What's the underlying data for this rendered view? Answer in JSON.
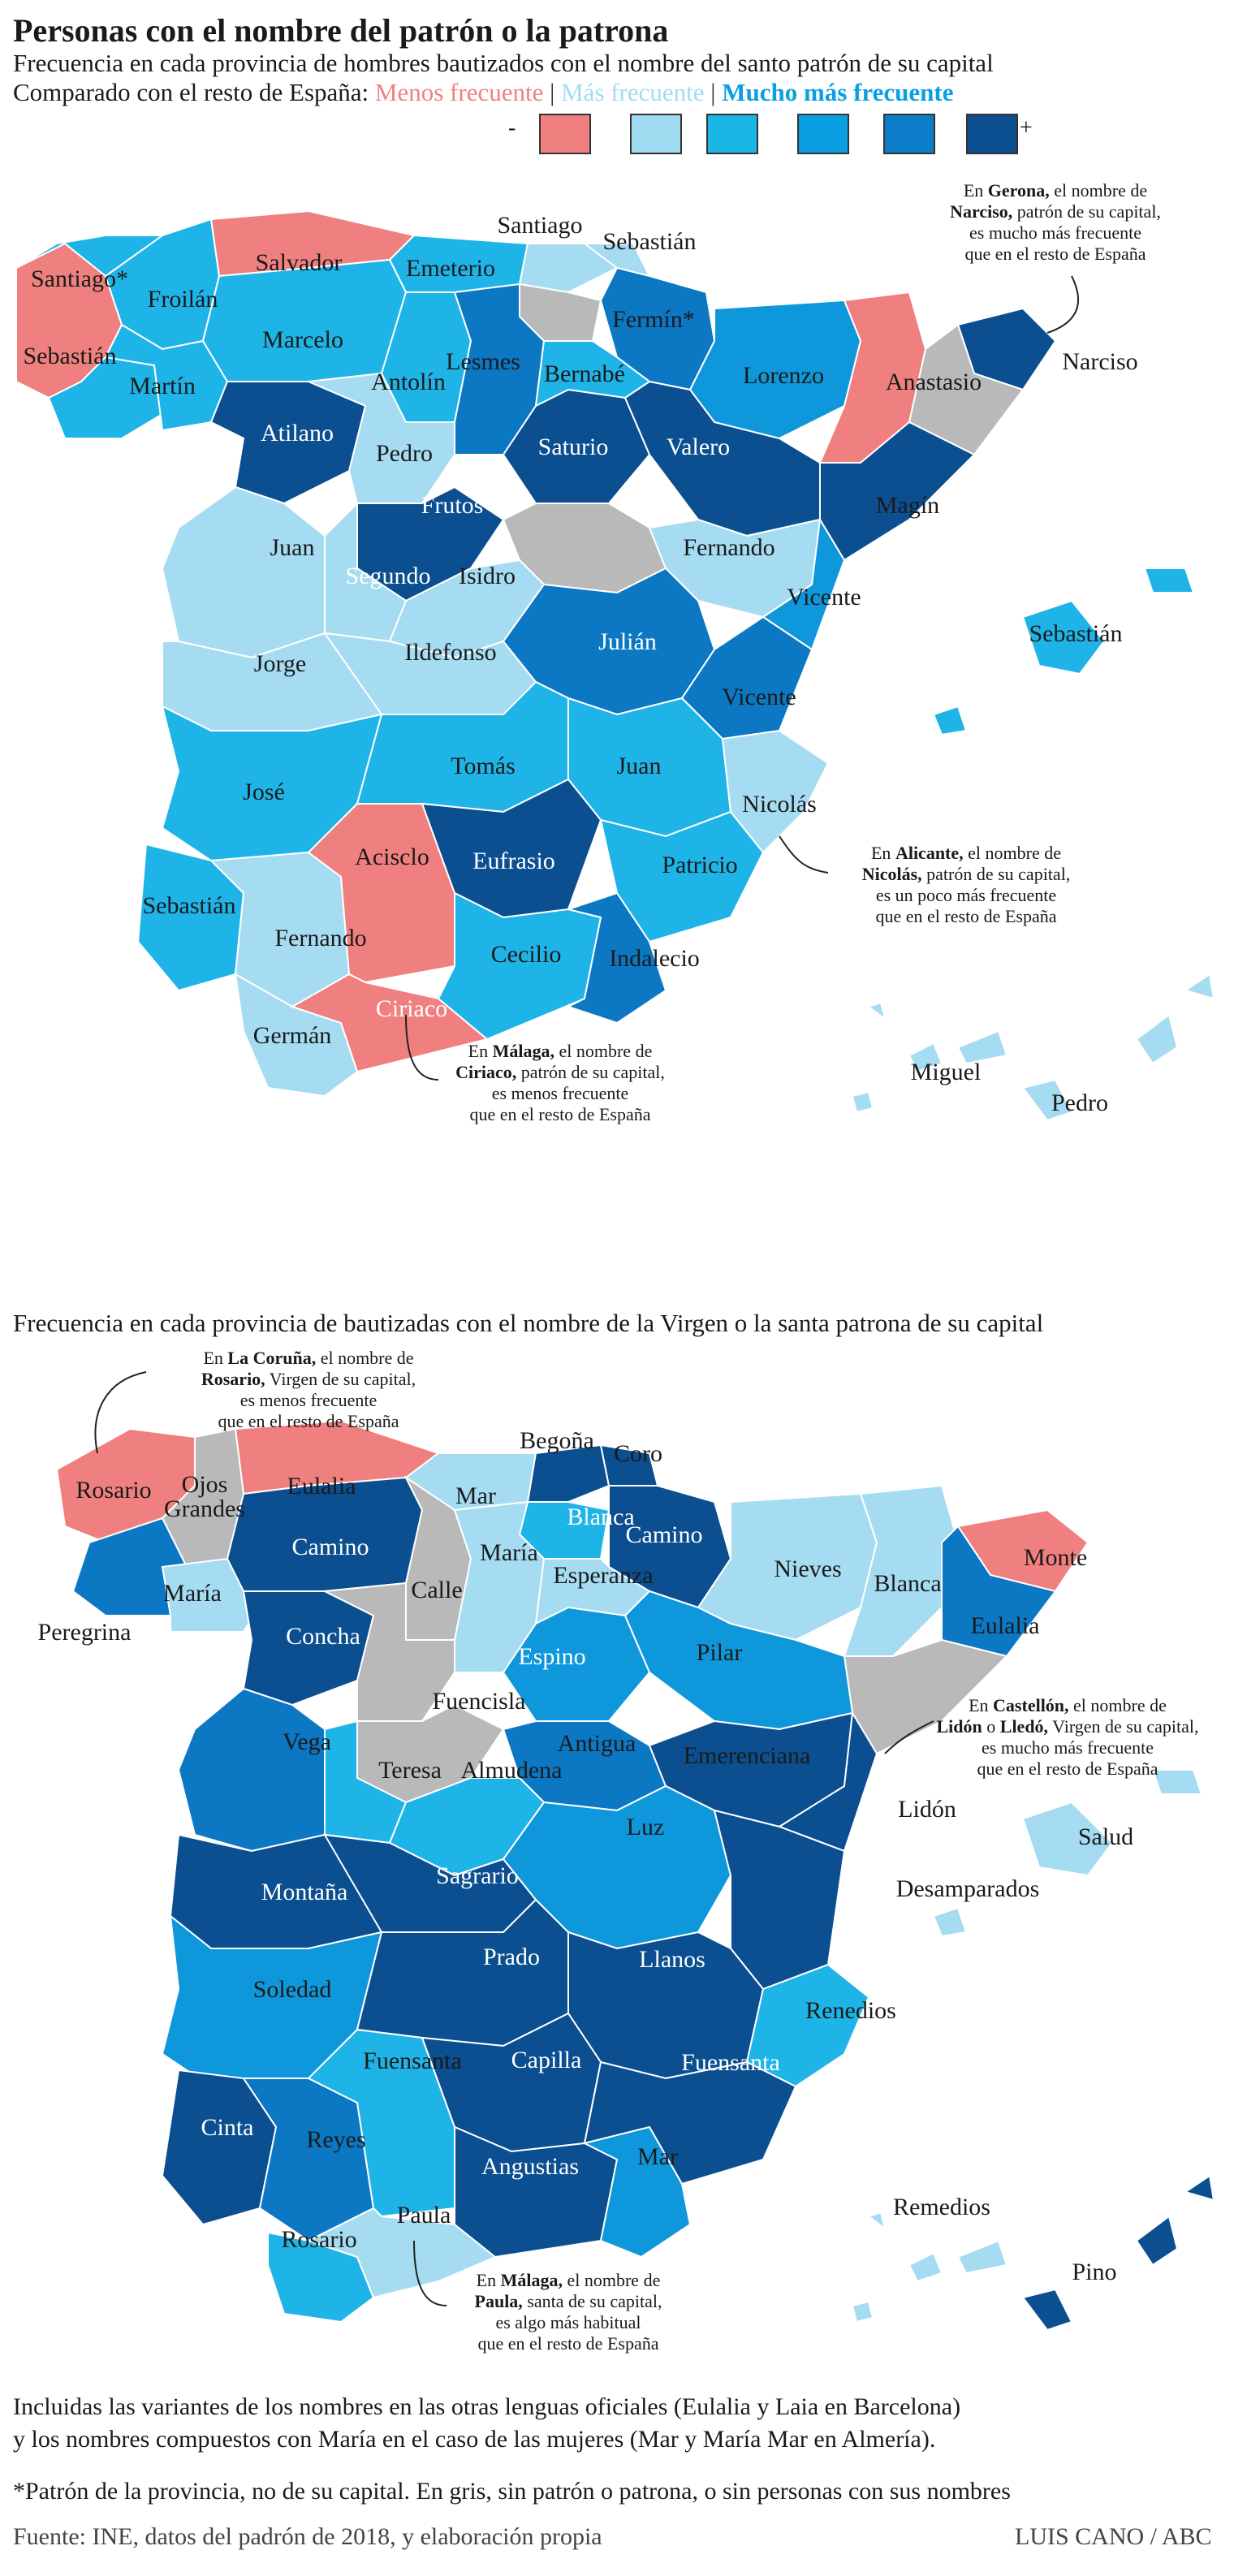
{
  "header": {
    "title": "Personas con el nombre del patrón o la patrona",
    "subtitle1": "Frecuencia en cada provincia de hombres bautizados con el nombre del santo patrón de su capital",
    "subtitle2_prefix": "Comparado con el resto de España:",
    "legend_less": "Menos frecuente",
    "legend_more": "Más frecuente",
    "legend_much_more": "Mucho más frecuente",
    "legend_minus": "-",
    "legend_plus": "+",
    "legend_colors": [
      "#f08080",
      "#9fdcf2",
      "#19b6e6",
      "#0a9fe0",
      "#0a7cc8",
      "#0b4f91"
    ]
  },
  "colors": {
    "less": "#f08080",
    "light": "#a5dcf2",
    "mid": "#1fb4e8",
    "mid2": "#0f97dc",
    "dark": "#0c78c4",
    "darkest": "#0b4f91",
    "gray": "#b9b9b9",
    "border": "#ffffff"
  },
  "map1": {
    "labels": [
      "Santiago",
      "Sebastián",
      "Santiago*",
      "Salvador",
      "Emeterio",
      "Froilán",
      "Sebastián",
      "Marcelo",
      "Fermín*",
      "Martín",
      "Antolín",
      "Lesmes",
      "Bernabé",
      "Lorenzo",
      "Anastasio",
      "Narciso",
      "Atilano",
      "Pedro",
      "Saturio",
      "Valero",
      "Frutos",
      "Magín",
      "Juan",
      "Fernando",
      "Segundo",
      "Isidro",
      "Vicente",
      "Sebastián",
      "Jorge",
      "Ildefonso",
      "Julián",
      "Vicente",
      "Tomás",
      "Juan",
      "José",
      "Nicolás",
      "Acisclo",
      "Eufrasio",
      "Patricio",
      "Sebastián",
      "Fernando",
      "Cecilio",
      "Indalecio",
      "Ciriaco",
      "Germán",
      "Miguel",
      "Pedro"
    ],
    "notes": {
      "gerona": [
        "En ",
        "Gerona,",
        " el nombre de",
        "Narciso,",
        " patrón de su capital,",
        "es mucho más frecuente",
        "que en el resto de España"
      ],
      "alicante": [
        "En ",
        "Alicante,",
        " el nombre de",
        "Nicolás,",
        " patrón de su capital,",
        "es un poco más frecuente",
        "que en el resto de España"
      ],
      "malaga": [
        "En ",
        "Málaga,",
        " el nombre de",
        "Ciriaco,",
        " patrón de su capital,",
        "es menos frecuente",
        "que en el resto de España"
      ]
    }
  },
  "map2": {
    "heading": "Frecuencia en cada provincia de bautizadas con el nombre de la Virgen o la santa patrona de su capital",
    "labels": [
      "Begoña",
      "Coro",
      "Rosario",
      "Ojos",
      "Grandes",
      "Eulalia",
      "Mar",
      "Blanca",
      "Camino",
      "Camino",
      "María",
      "Esperanza",
      "Nieves",
      "Blanca",
      "Monte",
      "María",
      "Calle",
      "Peregrina",
      "Concha",
      "Espino",
      "Pilar",
      "Eulalia",
      "Fuencisla",
      "Vega",
      "Antigua",
      "Emerenciana",
      "Teresa",
      "Almudena",
      "Lidón",
      "Luz",
      "Salud",
      "Montaña",
      "Sagrario",
      "Desamparados",
      "Prado",
      "Llanos",
      "Soledad",
      "Renedios",
      "Fuensanta",
      "Capilla",
      "Fuensanta",
      "Cinta",
      "Reyes",
      "Mar",
      "Angustias",
      "Remedios",
      "Paula",
      "Rosario",
      "Pino"
    ],
    "notes": {
      "coruna": [
        "En ",
        "La Coruña,",
        " el nombre de",
        "Rosario,",
        " Virgen de su capital,",
        "es menos frecuente",
        "que en el resto de España"
      ],
      "castellon": [
        "En ",
        "Castellón,",
        " el nombre de",
        "Lidón",
        " o ",
        "Lledó,",
        " Virgen de su capital,",
        "es mucho más frecuente",
        "que en el resto de España"
      ],
      "malaga": [
        "En ",
        "Málaga,",
        " el nombre de",
        "Paula,",
        " santa de su capital,",
        "es algo más habitual",
        "que en el resto de España"
      ]
    }
  },
  "footer": {
    "line1": "Incluidas las variantes de los nombres en las otras lenguas oficiales (Eulalia y Laia en Barcelona)",
    "line2": "y los nombres compuestos con María en el caso de las mujeres (Mar y María Mar en Almería).",
    "line3": "*Patrón de la provincia, no de su capital. En gris, sin patrón o patrona, o sin personas con sus nombres",
    "source": "Fuente: INE, datos del padrón de 2018, y elaboración propia",
    "credit": "LUIS CANO / ABC"
  }
}
